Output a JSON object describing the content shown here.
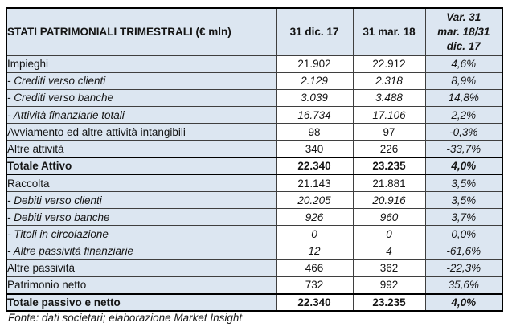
{
  "colors": {
    "shaded_cell_bg": "#dce6f1",
    "number_cell_bg": "#ffffff",
    "border_thick": "#000000",
    "border_thin": "#3f3f3f",
    "text": "#141414"
  },
  "table": {
    "header": {
      "title": "STATI PATRIMONIALI TRIMESTRALI (€ mln)",
      "col_dec17": "31 dic. 17",
      "col_mar18": "31 mar. 18",
      "var_lines": [
        "Var. 31",
        "mar. 18/31",
        "dic. 17"
      ]
    },
    "rows": [
      {
        "label": "Impieghi",
        "dec17": "21.902",
        "mar18": "22.912",
        "var": "4,6%",
        "style": "normal"
      },
      {
        "label": "- Crediti verso clienti",
        "dec17": "2.129",
        "mar18": "2.318",
        "var": "8,9%",
        "style": "sub"
      },
      {
        "label": "- Crediti verso banche",
        "dec17": "3.039",
        "mar18": "3.488",
        "var": "14,8%",
        "style": "sub"
      },
      {
        "label": "- Attività finanziarie totali",
        "dec17": "16.734",
        "mar18": "17.106",
        "var": "2,2%",
        "style": "sub"
      },
      {
        "label": "Avviamento ed altre attività intangibili",
        "dec17": "98",
        "mar18": "97",
        "var": "-0,3%",
        "style": "normal"
      },
      {
        "label": "Altre attività",
        "dec17": "340",
        "mar18": "226",
        "var": "-33,7%",
        "style": "normal"
      },
      {
        "label": "Totale Attivo",
        "dec17": "22.340",
        "mar18": "23.235",
        "var": "4,0%",
        "style": "total"
      },
      {
        "label": "Raccolta",
        "dec17": "21.143",
        "mar18": "21.881",
        "var": "3,5%",
        "style": "normal"
      },
      {
        "label": "- Debiti verso clienti",
        "dec17": "20.205",
        "mar18": "20.916",
        "var": "3,5%",
        "style": "sub"
      },
      {
        "label": "- Debiti verso banche",
        "dec17": "926",
        "mar18": "960",
        "var": "3,7%",
        "style": "sub"
      },
      {
        "label": "- Titoli in circolazione",
        "dec17": "0",
        "mar18": "0",
        "var": "0,0%",
        "style": "sub"
      },
      {
        "label": "- Altre passività finanziarie",
        "dec17": "12",
        "mar18": "4",
        "var": "-61,6%",
        "style": "sub"
      },
      {
        "label": "Altre passività",
        "dec17": "466",
        "mar18": "362",
        "var": "-22,3%",
        "style": "normal"
      },
      {
        "label": "Patrimonio netto",
        "dec17": "732",
        "mar18": "992",
        "var": "35,6%",
        "style": "normal"
      },
      {
        "label": "Totale passivo e netto",
        "dec17": "22.340",
        "mar18": "23.235",
        "var": "4,0%",
        "style": "total"
      }
    ]
  },
  "footer": {
    "source_note": "Fonte: dati societari; elaborazione Market Insight"
  }
}
